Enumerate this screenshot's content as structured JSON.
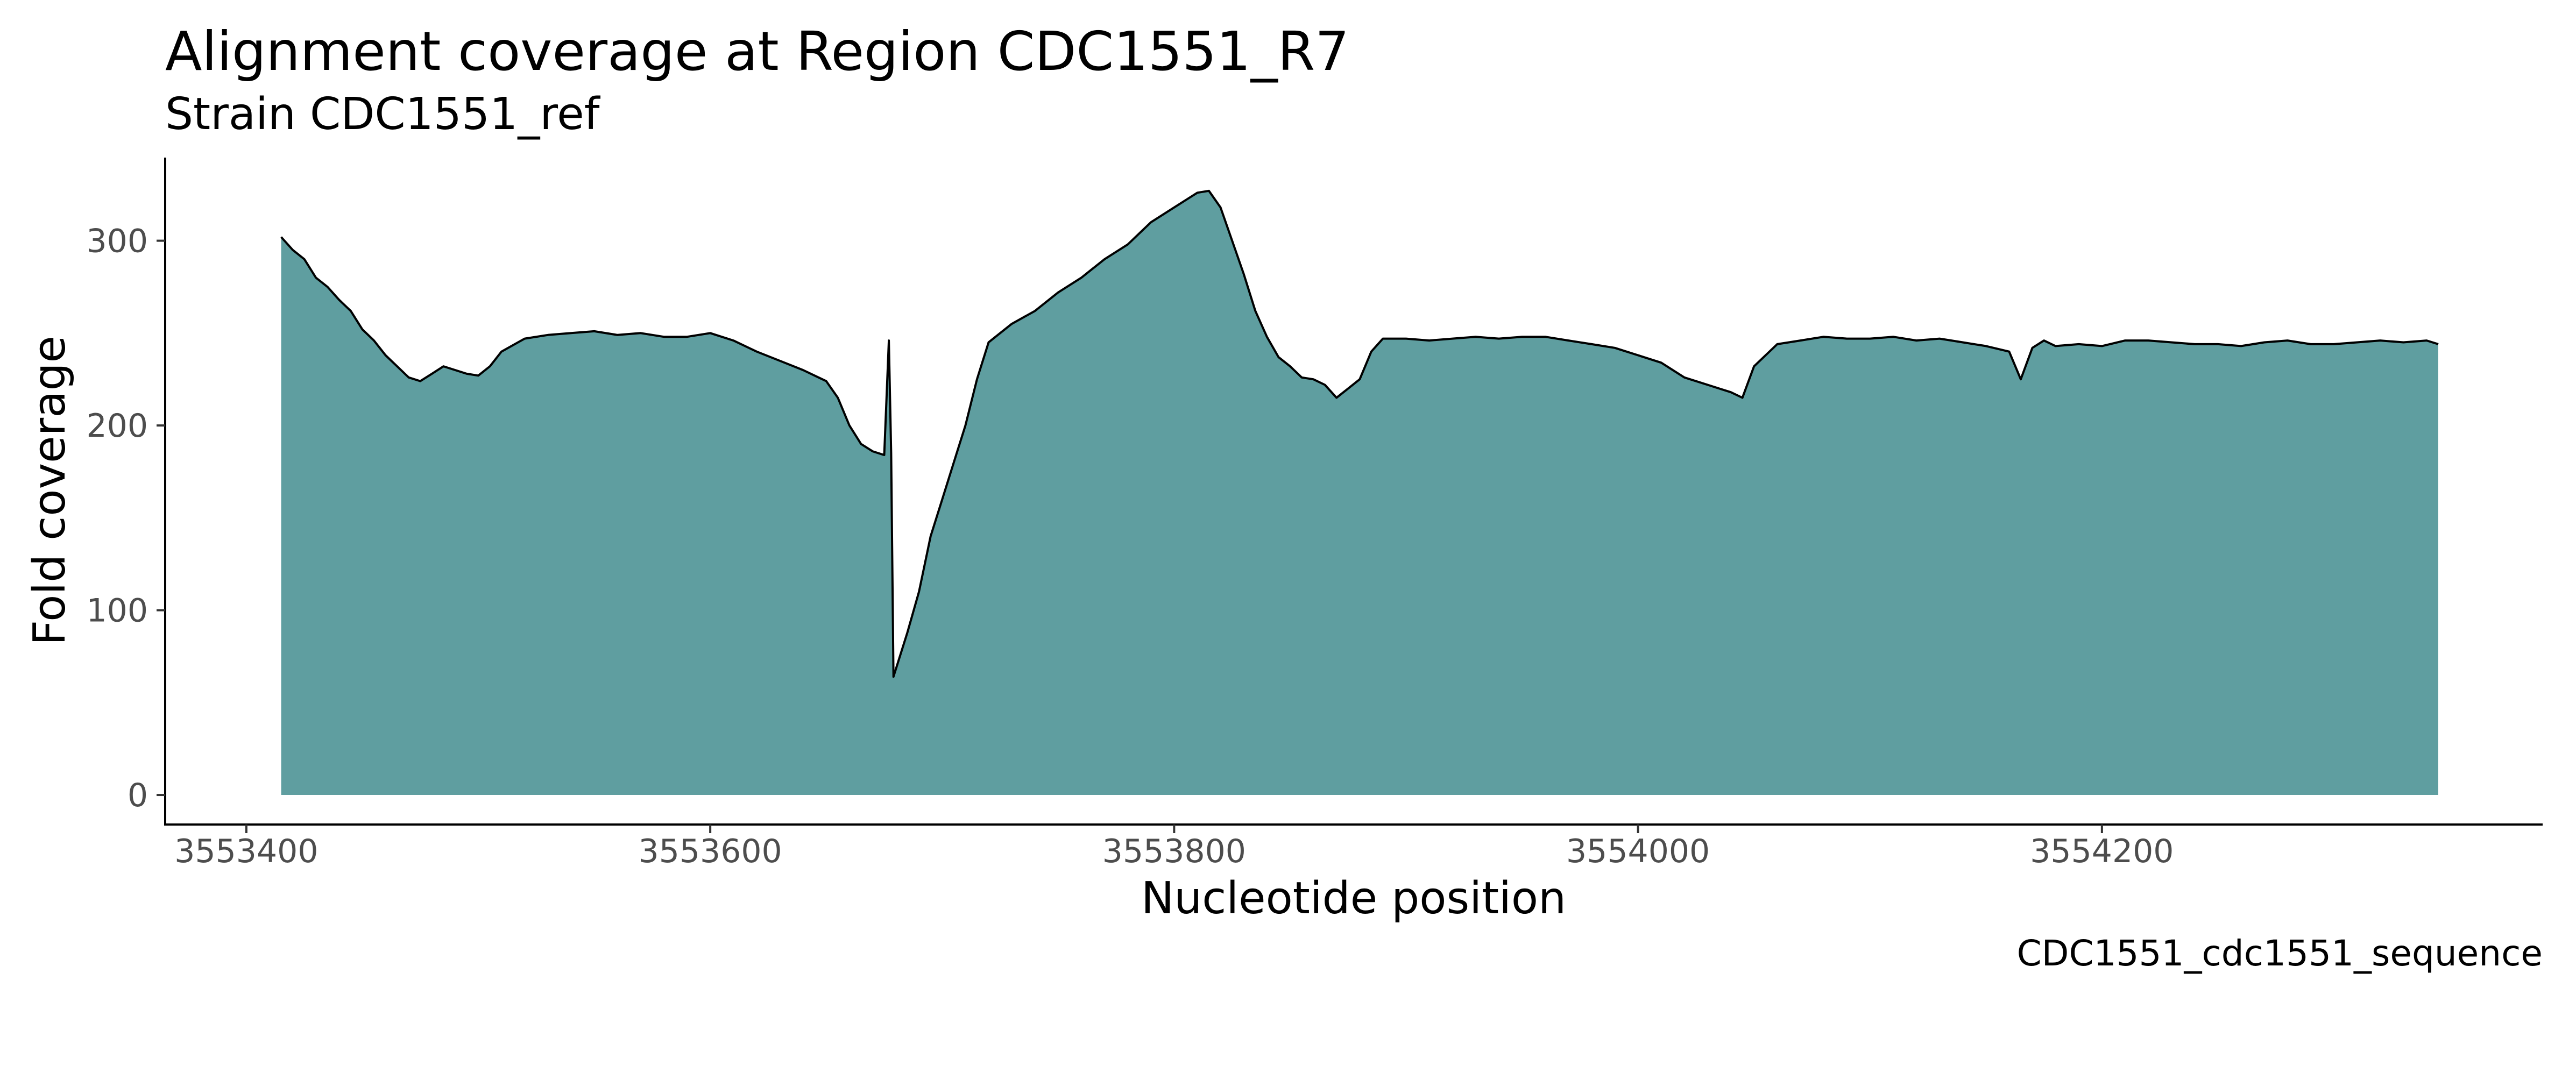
{
  "chart_data": {
    "type": "area",
    "title": "Alignment coverage at Region CDC1551_R7",
    "subtitle": "Strain CDC1551_ref",
    "xlabel": "Nucleotide position",
    "ylabel": "Fold coverage",
    "caption": "CDC1551_cdc1551_sequence",
    "xlim": [
      3553365,
      3554390
    ],
    "ylim": [
      -16,
      345
    ],
    "x_ticks": [
      3553400,
      3553600,
      3553800,
      3554000,
      3554200
    ],
    "x_tick_labels": [
      "3553400",
      "3553600",
      "3553800",
      "3554000",
      "3554200"
    ],
    "y_ticks": [
      0,
      100,
      200,
      300
    ],
    "y_tick_labels": [
      "0",
      "100",
      "200",
      "300"
    ],
    "grid": false,
    "legend": "none",
    "fill_color": "#5f9ea0",
    "line_color": "#000000",
    "series": [
      {
        "x": [
          3553415,
          3553420,
          3553425,
          3553430,
          3553435,
          3553440,
          3553445,
          3553450,
          3553455,
          3553460,
          3553465,
          3553470,
          3553475,
          3553480,
          3553485,
          3553490,
          3553495,
          3553500,
          3553505,
          3553510,
          3553520,
          3553530,
          3553540,
          3553550,
          3553560,
          3553570,
          3553580,
          3553590,
          3553600,
          3553610,
          3553620,
          3553630,
          3553640,
          3553650,
          3553655,
          3553660,
          3553665,
          3553670,
          3553675,
          3553677,
          3553678,
          3553679,
          3553680,
          3553685,
          3553690,
          3553695,
          3553700,
          3553705,
          3553710,
          3553715,
          3553720,
          3553730,
          3553740,
          3553750,
          3553760,
          3553770,
          3553780,
          3553790,
          3553800,
          3553805,
          3553810,
          3553815,
          3553820,
          3553825,
          3553830,
          3553835,
          3553840,
          3553845,
          3553850,
          3553855,
          3553860,
          3553865,
          3553870,
          3553875,
          3553880,
          3553885,
          3553890,
          3553900,
          3553910,
          3553920,
          3553930,
          3553940,
          3553950,
          3553960,
          3553970,
          3553980,
          3553990,
          3554000,
          3554010,
          3554020,
          3554030,
          3554035,
          3554040,
          3554045,
          3554050,
          3554060,
          3554070,
          3554080,
          3554090,
          3554100,
          3554110,
          3554120,
          3554130,
          3554140,
          3554150,
          3554160,
          3554165,
          3554170,
          3554175,
          3554180,
          3554190,
          3554200,
          3554210,
          3554220,
          3554230,
          3554240,
          3554250,
          3554260,
          3554270,
          3554280,
          3554290,
          3554300,
          3554310,
          3554320,
          3554330,
          3554340,
          3554345
        ],
        "y": [
          302,
          295,
          290,
          280,
          275,
          268,
          262,
          252,
          246,
          238,
          232,
          226,
          224,
          228,
          232,
          230,
          228,
          227,
          232,
          240,
          247,
          249,
          250,
          251,
          249,
          250,
          248,
          248,
          250,
          246,
          240,
          235,
          230,
          224,
          215,
          200,
          190,
          186,
          184,
          246,
          185,
          64,
          68,
          88,
          110,
          140,
          160,
          180,
          200,
          225,
          245,
          255,
          262,
          272,
          280,
          290,
          298,
          310,
          318,
          322,
          326,
          327,
          318,
          300,
          282,
          262,
          248,
          237,
          232,
          226,
          225,
          222,
          215,
          220,
          225,
          240,
          247,
          247,
          246,
          247,
          248,
          247,
          248,
          248,
          246,
          244,
          242,
          238,
          234,
          226,
          222,
          220,
          218,
          215,
          232,
          244,
          246,
          248,
          247,
          247,
          248,
          246,
          247,
          245,
          243,
          240,
          225,
          242,
          246,
          243,
          244,
          243,
          246,
          246,
          245,
          244,
          244,
          243,
          245,
          246,
          244,
          244,
          245,
          246,
          245,
          246,
          244
        ]
      }
    ]
  }
}
